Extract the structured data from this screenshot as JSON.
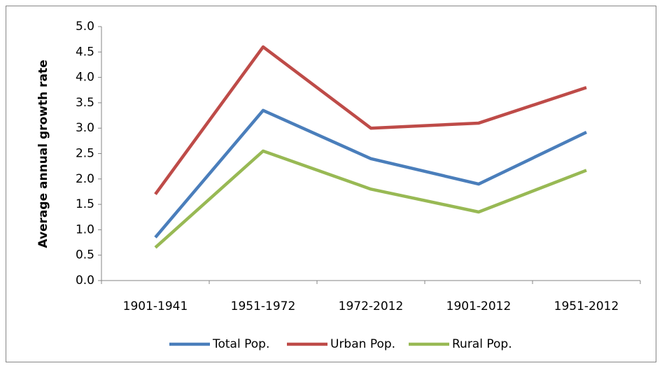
{
  "chart_data": {
    "type": "line",
    "y_label": "Average annual  growth rate",
    "categories": [
      "1901-1941",
      "1951-1972",
      "1972-2012",
      "1901-2012",
      "1951-2012"
    ],
    "series": [
      {
        "name": "Total Pop.",
        "color": "#4a7ebb",
        "values": [
          0.85,
          3.35,
          2.4,
          1.9,
          2.92
        ]
      },
      {
        "name": "Urban Pop.",
        "color": "#be4b48",
        "values": [
          1.7,
          4.6,
          3.0,
          3.1,
          3.8
        ]
      },
      {
        "name": "Rural Pop.",
        "color": "#98b954",
        "values": [
          0.65,
          2.55,
          1.8,
          1.35,
          2.17
        ]
      }
    ],
    "ylim": [
      0,
      5
    ],
    "yticks": [
      {
        "value": 0,
        "label": "0.0"
      },
      0.5,
      {
        "value": 1,
        "label": "1.0"
      },
      1.5,
      {
        "value": 2,
        "label": "2.0"
      },
      2.5,
      {
        "value": 3,
        "label": "3.0"
      },
      3.5,
      {
        "value": 4,
        "label": "4.0"
      },
      4.5,
      {
        "value": 5,
        "label": "5.0"
      }
    ],
    "legend": "bottom"
  }
}
